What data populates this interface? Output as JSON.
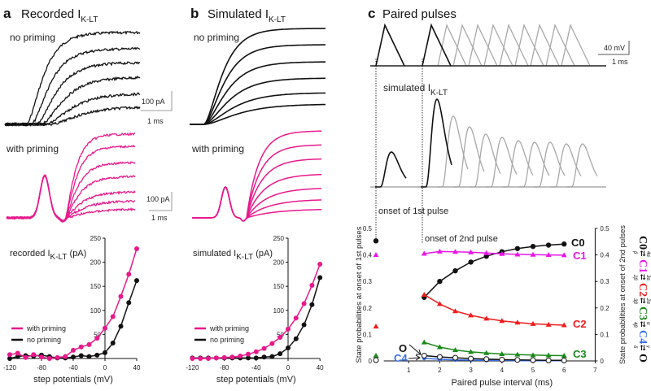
{
  "panels": {
    "a": {
      "letter": "a",
      "title": "Recorded I",
      "sub": "K-LT"
    },
    "b": {
      "letter": "b",
      "title": "Simulated I",
      "sub": "K-LT"
    },
    "c": {
      "letter": "c",
      "title": "Paired pulses"
    }
  },
  "trace_labels": {
    "no_priming": "no priming",
    "with_priming": "with priming",
    "simulated_current": "simulated I",
    "simulated_current_sub": "K-LT",
    "onset_1st": "onset of 1st pulse",
    "onset_2nd": "onset of 2nd pulse"
  },
  "scale_bars": {
    "current": "100 pA",
    "time": "1 ms",
    "voltage": "40 mV"
  },
  "colors": {
    "priming": "#e8198b",
    "no_priming": "#111111",
    "gray": "#a8a8a8",
    "C0": "#111111",
    "C1": "#e815e8",
    "C2": "#ee1c1c",
    "C3": "#1a8a1a",
    "C4": "#3a6fe8",
    "O": "#111111"
  },
  "chart_data": [
    {
      "type": "line",
      "id": "recorded",
      "ylabel_parts": [
        "recorded I",
        "K-LT",
        "(pA)"
      ],
      "xlabel": "step potentials (mV)",
      "xlim": [
        -120,
        40
      ],
      "ylim": [
        0,
        250
      ],
      "xticks": [
        -120,
        -80,
        -40,
        0,
        40
      ],
      "yticks": [
        50,
        100,
        150,
        200,
        250
      ],
      "x": [
        -120,
        -110,
        -100,
        -90,
        -80,
        -70,
        -60,
        -50,
        -40,
        -30,
        -20,
        -10,
        0,
        10,
        20,
        30,
        40
      ],
      "series": [
        {
          "name": "with priming",
          "color": "#e8198b",
          "values": [
            8,
            11,
            2,
            8,
            3,
            0,
            2,
            4,
            17,
            24,
            29,
            42,
            63,
            87,
            129,
            175,
            228
          ]
        },
        {
          "name": "no priming",
          "color": "#111111",
          "values": [
            0,
            4,
            6,
            5,
            7,
            4,
            1,
            1,
            3,
            6,
            4,
            7,
            12,
            32,
            67,
            116,
            162
          ]
        }
      ],
      "legend": "bottom-left"
    },
    {
      "type": "line",
      "id": "simulated",
      "ylabel_parts": [
        "simulated I",
        "K-LT",
        "(pA)"
      ],
      "xlabel": "step potentials (mV)",
      "xlim": [
        -120,
        40
      ],
      "ylim": [
        0,
        250
      ],
      "xticks": [
        -120,
        -80,
        -40,
        0,
        40
      ],
      "yticks": [
        50,
        100,
        150,
        200,
        250
      ],
      "x": [
        -120,
        -110,
        -100,
        -90,
        -80,
        -70,
        -60,
        -50,
        -40,
        -30,
        -20,
        -10,
        0,
        10,
        20,
        30,
        40
      ],
      "series": [
        {
          "name": "with priming",
          "color": "#e8198b",
          "values": [
            0,
            0,
            0,
            1,
            2,
            3,
            5,
            9,
            14,
            21,
            31,
            44,
            61,
            84,
            114,
            152,
            196
          ]
        },
        {
          "name": "no priming",
          "color": "#111111",
          "values": [
            1,
            1,
            1,
            1,
            1,
            1,
            1,
            1,
            1,
            3,
            4,
            10,
            22,
            41,
            70,
            112,
            168
          ]
        }
      ],
      "legend": "bottom-left"
    },
    {
      "type": "line",
      "id": "state-probabilities",
      "xlabel": "Paired pulse interval (ms)",
      "ylabel_left": "State probabilities at onset of 1st pulses",
      "ylabel_right": "State probabilities at onset of 2nd pulses",
      "xlim": [
        0,
        7
      ],
      "ylim": [
        0,
        0.5
      ],
      "xticks": [
        1,
        2,
        3,
        4,
        5,
        6,
        7
      ],
      "yticks": [
        0,
        0.1,
        0.2,
        0.3,
        0.4,
        0.5
      ],
      "x": [
        1.5,
        2,
        2.5,
        3,
        3.5,
        4,
        4.5,
        5,
        5.5,
        6
      ],
      "series": [
        {
          "name": "C0",
          "color": "#111111",
          "marker": "circle",
          "first_pulse": 0.453,
          "values": [
            0.24,
            0.3,
            0.34,
            0.373,
            0.395,
            0.412,
            0.424,
            0.432,
            0.437,
            0.441
          ]
        },
        {
          "name": "C1",
          "color": "#e815e8",
          "marker": "triangle",
          "first_pulse": 0.4,
          "values": [
            0.405,
            0.413,
            0.412,
            0.41,
            0.407,
            0.404,
            0.402,
            0.401,
            0.4,
            0.399
          ]
        },
        {
          "name": "C2",
          "color": "#ee1c1c",
          "marker": "triangle",
          "first_pulse": 0.13,
          "values": [
            0.25,
            0.215,
            0.188,
            0.172,
            0.16,
            0.151,
            0.145,
            0.14,
            0.137,
            0.135
          ]
        },
        {
          "name": "C3",
          "color": "#1a8a1a",
          "marker": "triangle",
          "first_pulse": 0.02,
          "values": [
            0.07,
            0.052,
            0.041,
            0.034,
            0.03,
            0.026,
            0.024,
            0.022,
            0.021,
            0.02
          ]
        },
        {
          "name": "C4",
          "color": "#3a6fe8",
          "marker": "circle",
          "first_pulse": 0.005,
          "values": [
            0.01,
            0.006,
            0.004,
            0.003,
            0.002,
            0.002,
            0.001,
            0.001,
            0.001,
            0.001
          ]
        },
        {
          "name": "O",
          "color": "#111111",
          "marker": "open-circle",
          "first_pulse": 0.003,
          "values": [
            0.02,
            0.015,
            0.012,
            0.009,
            0.007,
            0.005,
            0.004,
            0.003,
            0.002,
            0.002
          ]
        }
      ]
    }
  ],
  "scheme": {
    "states": [
      "C0",
      "C1",
      "C2",
      "C3",
      "C4",
      "O"
    ],
    "forward_rates": [
      "4α",
      "3α",
      "2α",
      "α",
      "γ"
    ],
    "backward_rates": [
      "β",
      "2β",
      "3β",
      "4β",
      "δ"
    ]
  }
}
